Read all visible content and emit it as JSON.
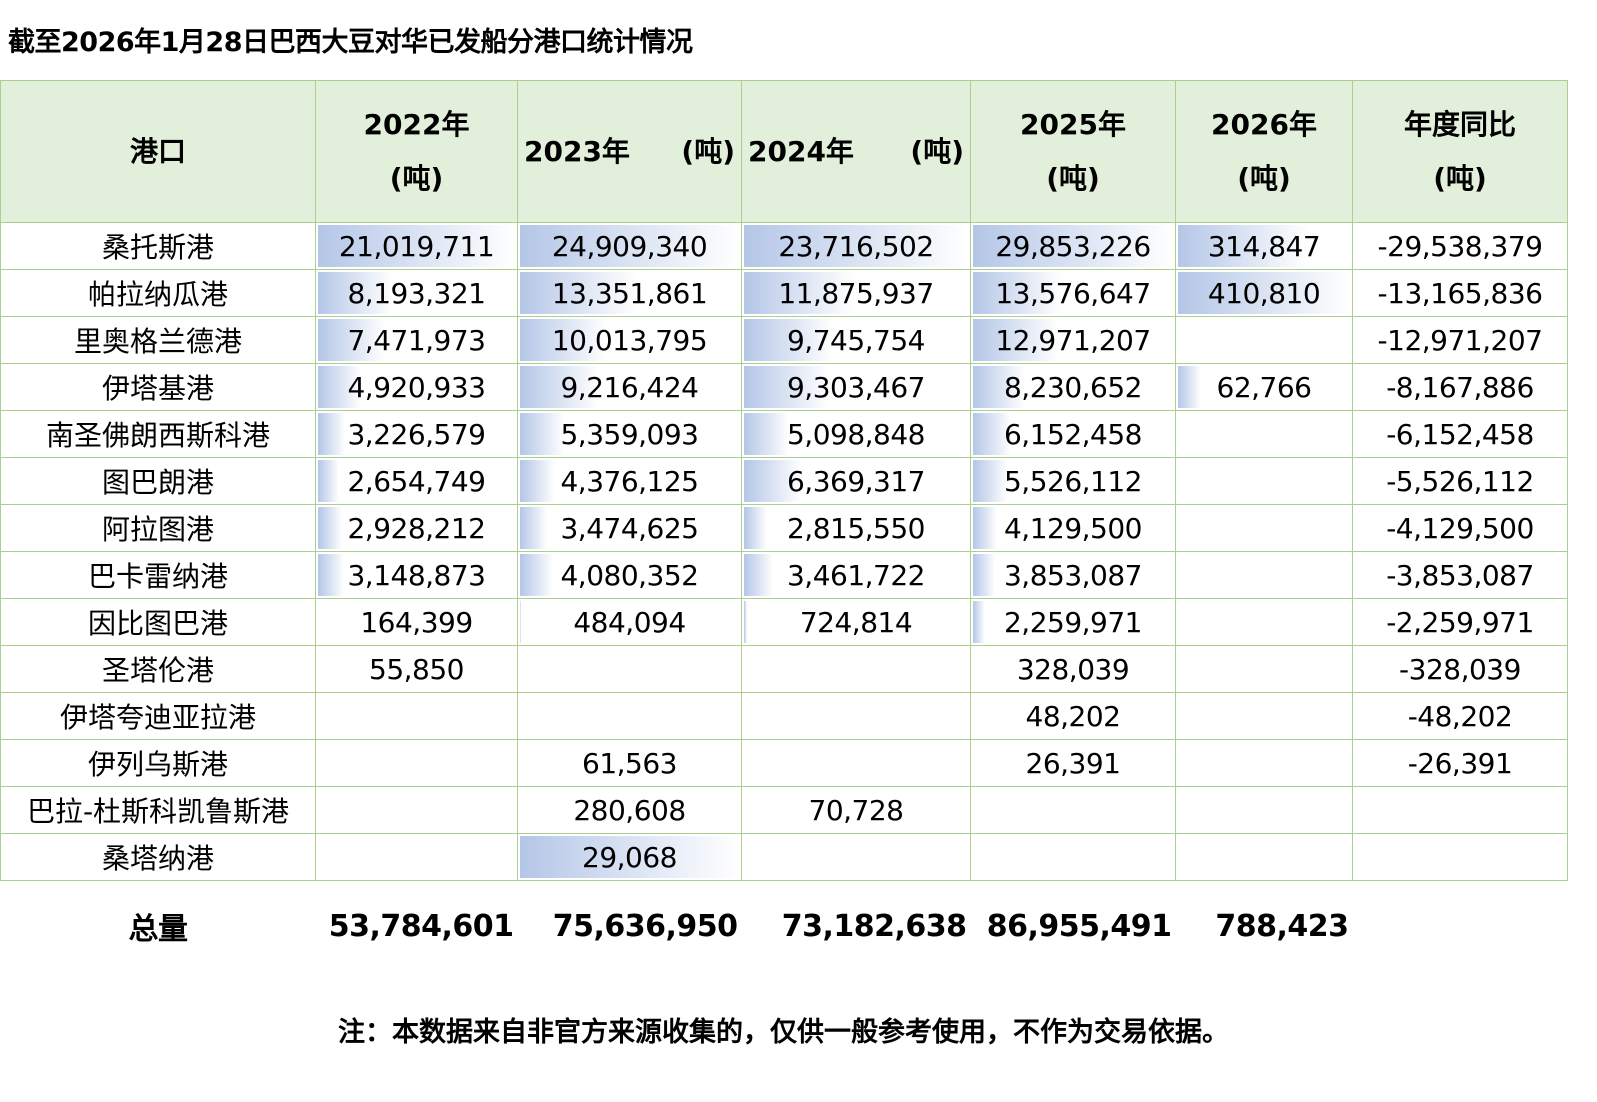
{
  "title": "截至2026年1月28日巴西大豆对华已发船分港口统计情况",
  "headers": [
    {
      "line1": "港口",
      "line2": ""
    },
    {
      "line1": "2022年",
      "line2": "(吨)"
    },
    {
      "line1": "2023年",
      "line2": "(吨)",
      "split": true
    },
    {
      "line1": "2024年",
      "line2": "(吨)",
      "split": true
    },
    {
      "line1": "2025年",
      "line2": "(吨)"
    },
    {
      "line1": "2026年",
      "line2": "(吨)"
    },
    {
      "line1": "年度同比",
      "line2": "(吨)"
    }
  ],
  "rows": [
    {
      "port": "桑托斯港",
      "values": [
        "21,019,711",
        "24,909,340",
        "23,716,502",
        "29,853,226",
        "314,847",
        "-29,538,379"
      ]
    },
    {
      "port": "帕拉纳瓜港",
      "values": [
        "8,193,321",
        "13,351,861",
        "11,875,937",
        "13,576,647",
        "410,810",
        "-13,165,836"
      ]
    },
    {
      "port": "里奥格兰德港",
      "values": [
        "7,471,973",
        "10,013,795",
        "9,745,754",
        "12,971,207",
        "",
        "-12,971,207"
      ]
    },
    {
      "port": "伊塔基港",
      "values": [
        "4,920,933",
        "9,216,424",
        "9,303,467",
        "8,230,652",
        "62,766",
        "-8,167,886"
      ]
    },
    {
      "port": "南圣佛朗西斯科港",
      "values": [
        "3,226,579",
        "5,359,093",
        "5,098,848",
        "6,152,458",
        "",
        "-6,152,458"
      ]
    },
    {
      "port": "图巴朗港",
      "values": [
        "2,654,749",
        "4,376,125",
        "6,369,317",
        "5,526,112",
        "",
        "-5,526,112"
      ]
    },
    {
      "port": "阿拉图港",
      "values": [
        "2,928,212",
        "3,474,625",
        "2,815,550",
        "4,129,500",
        "",
        "-4,129,500"
      ]
    },
    {
      "port": "巴卡雷纳港",
      "values": [
        "3,148,873",
        "4,080,352",
        "3,461,722",
        "3,853,087",
        "",
        "-3,853,087"
      ]
    },
    {
      "port": "因比图巴港",
      "values": [
        "164,399",
        "484,094",
        "724,814",
        "2,259,971",
        "",
        "-2,259,971"
      ]
    },
    {
      "port": "圣塔伦港",
      "values": [
        "55,850",
        "",
        "",
        "328,039",
        "",
        "-328,039"
      ]
    },
    {
      "port": "伊塔夸迪亚拉港",
      "values": [
        "",
        "",
        "",
        "48,202",
        "",
        "-48,202"
      ]
    },
    {
      "port": "伊列乌斯港",
      "values": [
        "",
        "61,563",
        "",
        "26,391",
        "",
        "-26,391"
      ]
    },
    {
      "port": "巴拉-杜斯科凯鲁斯港",
      "values": [
        "",
        "280,608",
        "70,728",
        "",
        "",
        ""
      ]
    },
    {
      "port": "桑塔纳港",
      "values": [
        "",
        "29,068",
        "",
        "",
        "",
        ""
      ],
      "bar_fraction_override": {
        "1": 1.0
      }
    }
  ],
  "total": {
    "label": "总量",
    "values": [
      "53,784,601",
      "75,636,950",
      "73,182,638",
      "86,955,491",
      "788,423",
      ""
    ]
  },
  "note": "注：本数据来自非官方来源收集的，仅供一般参考使用，不作为交易依据。"
}
